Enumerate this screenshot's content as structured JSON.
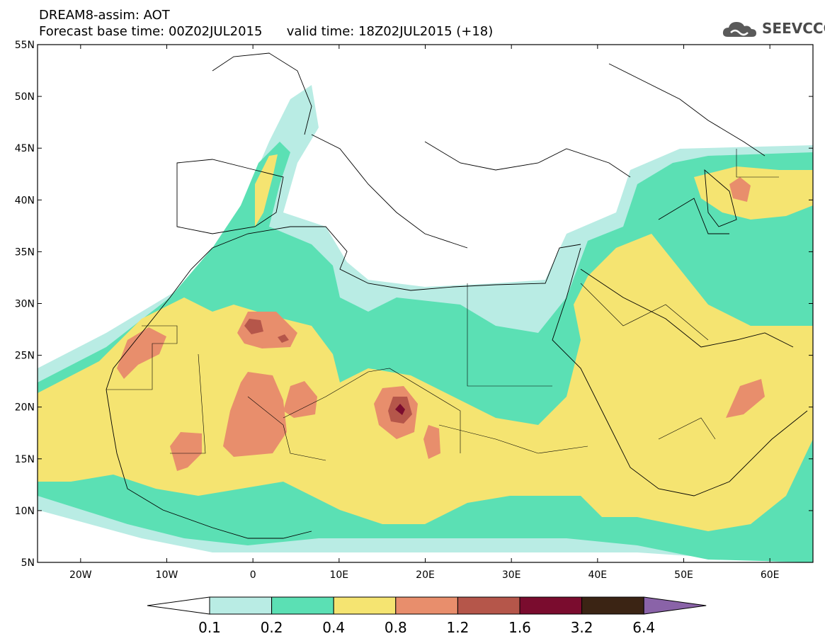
{
  "header": {
    "title_line1": "DREAM8-assim: AOT",
    "title_line2_left": "Forecast base time: 00Z02JUL2015",
    "title_line2_right": "valid time: 18Z02JUL2015 (+18)",
    "logo_text": "SEEVCCC",
    "logo_icon": "cloud-logo-icon"
  },
  "map": {
    "lon_range": [
      -25,
      65
    ],
    "lat_range": [
      5,
      55
    ],
    "lat_labels": [
      "55N",
      "50N",
      "45N",
      "40N",
      "35N",
      "30N",
      "25N",
      "20N",
      "15N",
      "10N",
      "5N"
    ],
    "lon_labels": [
      "20W",
      "10W",
      "0",
      "10E",
      "20E",
      "30E",
      "40E",
      "50E",
      "60E"
    ],
    "colors": {
      "lightcyan": "#b9ece4",
      "teal": "#5be0b4",
      "yellow": "#f5e471",
      "salmon": "#e88e6c",
      "rust": "#b5564a",
      "crimson": "#7a0c2e",
      "dark": "#3b2414",
      "purple": "#8a63a8"
    }
  },
  "colorbar": {
    "labels": [
      "0.1",
      "0.2",
      "0.4",
      "0.8",
      "1.2",
      "1.6",
      "3.2",
      "6.4"
    ],
    "colors": [
      "#b9ece4",
      "#5be0b4",
      "#f5e471",
      "#e88e6c",
      "#b5564a",
      "#7a0c2e",
      "#3b2414"
    ],
    "low_color": "#ffffff",
    "high_color": "#8a63a8"
  }
}
